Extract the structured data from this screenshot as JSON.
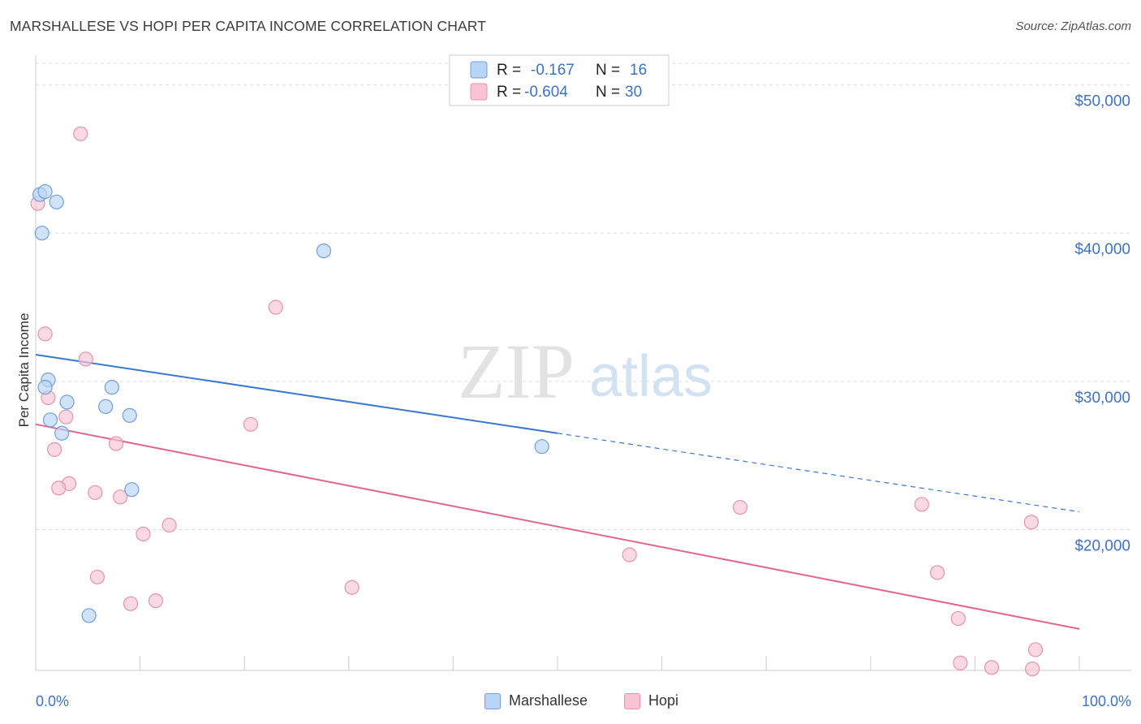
{
  "title": "MARSHALLESE VS HOPI PER CAPITA INCOME CORRELATION CHART",
  "source": "Source: ZipAtlas.com",
  "watermark": {
    "zip": "ZIP",
    "atlas": "atlas"
  },
  "colors": {
    "marshallese_fill": "#b9d4f6",
    "marshallese_stroke": "#6f9fdc",
    "marshallese_line": "#3a78d0",
    "hopi_fill": "#f8c4d3",
    "hopi_stroke": "#e693ae",
    "hopi_line": "#e0668f",
    "axis_label": "#3d72c4",
    "grid": "#dddddd"
  },
  "legend_top": [
    {
      "series": "Marshallese",
      "r_label": "R =",
      "r_value": "-0.167",
      "n_label": "N =",
      "n_value": "16"
    },
    {
      "series": "Hopi",
      "r_label": "R =",
      "r_value": "-0.604",
      "n_label": "N =",
      "n_value": "30"
    }
  ],
  "legend_bottom": [
    "Marshallese",
    "Hopi"
  ],
  "chart_data": {
    "type": "scatter",
    "title": "MARSHALLESE VS HOPI PER CAPITA INCOME CORRELATION CHART",
    "xlabel": "",
    "ylabel": "Per Capita Income",
    "xlim": [
      0,
      100
    ],
    "ylim": [
      10500,
      52000
    ],
    "x_tick_labels": [
      "0.0%",
      "100.0%"
    ],
    "y_ticks": [
      20000,
      30000,
      40000,
      50000
    ],
    "y_tick_labels": [
      "$20,000",
      "$30,000",
      "$40,000",
      "$50,000"
    ],
    "grid": true,
    "series": [
      {
        "name": "Marshallese",
        "points": [
          [
            0.4,
            42600
          ],
          [
            0.9,
            42800
          ],
          [
            2.0,
            42100
          ],
          [
            0.6,
            40000
          ],
          [
            27.6,
            38800
          ],
          [
            1.2,
            30100
          ],
          [
            0.9,
            29600
          ],
          [
            7.3,
            29600
          ],
          [
            3.0,
            28600
          ],
          [
            6.7,
            28300
          ],
          [
            1.4,
            27400
          ],
          [
            9.0,
            27700
          ],
          [
            2.5,
            26500
          ],
          [
            48.5,
            25600
          ],
          [
            9.2,
            22700
          ],
          [
            5.1,
            14200
          ]
        ],
        "trend": {
          "x0": 0,
          "y0": 31800,
          "x1": 100,
          "y1": 21200,
          "solid_until": 50
        }
      },
      {
        "name": "Hopi",
        "points": [
          [
            4.3,
            46700
          ],
          [
            0.2,
            42000
          ],
          [
            23.0,
            35000
          ],
          [
            0.9,
            33200
          ],
          [
            4.8,
            31500
          ],
          [
            1.2,
            28900
          ],
          [
            2.9,
            27600
          ],
          [
            20.6,
            27100
          ],
          [
            7.7,
            25800
          ],
          [
            1.8,
            25400
          ],
          [
            3.2,
            23100
          ],
          [
            2.2,
            22800
          ],
          [
            5.7,
            22500
          ],
          [
            8.1,
            22200
          ],
          [
            10.3,
            19700
          ],
          [
            12.8,
            20300
          ],
          [
            67.5,
            21500
          ],
          [
            84.9,
            21700
          ],
          [
            95.4,
            20500
          ],
          [
            56.9,
            18300
          ],
          [
            5.9,
            16800
          ],
          [
            30.3,
            16100
          ],
          [
            9.1,
            15000
          ],
          [
            11.5,
            15200
          ],
          [
            86.4,
            17100
          ],
          [
            88.4,
            14000
          ],
          [
            95.8,
            11900
          ],
          [
            88.6,
            11000
          ],
          [
            91.6,
            10700
          ],
          [
            95.5,
            10600
          ]
        ],
        "trend": {
          "x0": 0,
          "y0": 27100,
          "x1": 100,
          "y1": 13300
        }
      }
    ]
  }
}
